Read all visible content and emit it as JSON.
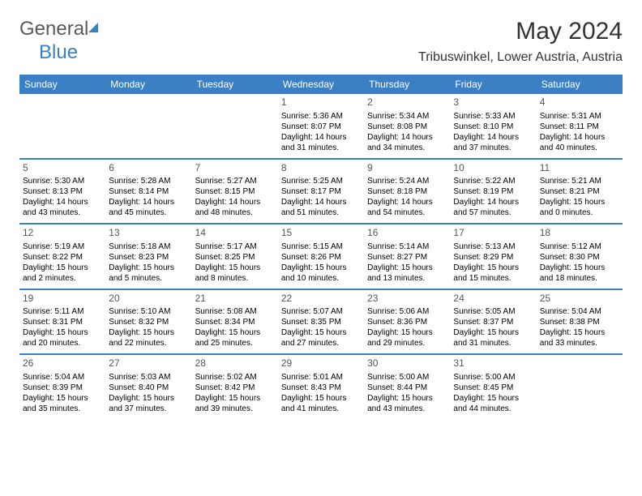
{
  "logo": {
    "part1": "General",
    "part2": "Blue"
  },
  "title": "May 2024",
  "location": "Tribuswinkel, Lower Austria, Austria",
  "colors": {
    "accent": "#3b7fc4",
    "text": "#000000",
    "header_text": "#ffffff",
    "bg": "#ffffff"
  },
  "weekdays": [
    "Sunday",
    "Monday",
    "Tuesday",
    "Wednesday",
    "Thursday",
    "Friday",
    "Saturday"
  ],
  "weeks": [
    [
      {
        "n": "",
        "sr": "",
        "ss": "",
        "dl": ""
      },
      {
        "n": "",
        "sr": "",
        "ss": "",
        "dl": ""
      },
      {
        "n": "",
        "sr": "",
        "ss": "",
        "dl": ""
      },
      {
        "n": "1",
        "sr": "Sunrise: 5:36 AM",
        "ss": "Sunset: 8:07 PM",
        "dl": "Daylight: 14 hours and 31 minutes."
      },
      {
        "n": "2",
        "sr": "Sunrise: 5:34 AM",
        "ss": "Sunset: 8:08 PM",
        "dl": "Daylight: 14 hours and 34 minutes."
      },
      {
        "n": "3",
        "sr": "Sunrise: 5:33 AM",
        "ss": "Sunset: 8:10 PM",
        "dl": "Daylight: 14 hours and 37 minutes."
      },
      {
        "n": "4",
        "sr": "Sunrise: 5:31 AM",
        "ss": "Sunset: 8:11 PM",
        "dl": "Daylight: 14 hours and 40 minutes."
      }
    ],
    [
      {
        "n": "5",
        "sr": "Sunrise: 5:30 AM",
        "ss": "Sunset: 8:13 PM",
        "dl": "Daylight: 14 hours and 43 minutes."
      },
      {
        "n": "6",
        "sr": "Sunrise: 5:28 AM",
        "ss": "Sunset: 8:14 PM",
        "dl": "Daylight: 14 hours and 45 minutes."
      },
      {
        "n": "7",
        "sr": "Sunrise: 5:27 AM",
        "ss": "Sunset: 8:15 PM",
        "dl": "Daylight: 14 hours and 48 minutes."
      },
      {
        "n": "8",
        "sr": "Sunrise: 5:25 AM",
        "ss": "Sunset: 8:17 PM",
        "dl": "Daylight: 14 hours and 51 minutes."
      },
      {
        "n": "9",
        "sr": "Sunrise: 5:24 AM",
        "ss": "Sunset: 8:18 PM",
        "dl": "Daylight: 14 hours and 54 minutes."
      },
      {
        "n": "10",
        "sr": "Sunrise: 5:22 AM",
        "ss": "Sunset: 8:19 PM",
        "dl": "Daylight: 14 hours and 57 minutes."
      },
      {
        "n": "11",
        "sr": "Sunrise: 5:21 AM",
        "ss": "Sunset: 8:21 PM",
        "dl": "Daylight: 15 hours and 0 minutes."
      }
    ],
    [
      {
        "n": "12",
        "sr": "Sunrise: 5:19 AM",
        "ss": "Sunset: 8:22 PM",
        "dl": "Daylight: 15 hours and 2 minutes."
      },
      {
        "n": "13",
        "sr": "Sunrise: 5:18 AM",
        "ss": "Sunset: 8:23 PM",
        "dl": "Daylight: 15 hours and 5 minutes."
      },
      {
        "n": "14",
        "sr": "Sunrise: 5:17 AM",
        "ss": "Sunset: 8:25 PM",
        "dl": "Daylight: 15 hours and 8 minutes."
      },
      {
        "n": "15",
        "sr": "Sunrise: 5:15 AM",
        "ss": "Sunset: 8:26 PM",
        "dl": "Daylight: 15 hours and 10 minutes."
      },
      {
        "n": "16",
        "sr": "Sunrise: 5:14 AM",
        "ss": "Sunset: 8:27 PM",
        "dl": "Daylight: 15 hours and 13 minutes."
      },
      {
        "n": "17",
        "sr": "Sunrise: 5:13 AM",
        "ss": "Sunset: 8:29 PM",
        "dl": "Daylight: 15 hours and 15 minutes."
      },
      {
        "n": "18",
        "sr": "Sunrise: 5:12 AM",
        "ss": "Sunset: 8:30 PM",
        "dl": "Daylight: 15 hours and 18 minutes."
      }
    ],
    [
      {
        "n": "19",
        "sr": "Sunrise: 5:11 AM",
        "ss": "Sunset: 8:31 PM",
        "dl": "Daylight: 15 hours and 20 minutes."
      },
      {
        "n": "20",
        "sr": "Sunrise: 5:10 AM",
        "ss": "Sunset: 8:32 PM",
        "dl": "Daylight: 15 hours and 22 minutes."
      },
      {
        "n": "21",
        "sr": "Sunrise: 5:08 AM",
        "ss": "Sunset: 8:34 PM",
        "dl": "Daylight: 15 hours and 25 minutes."
      },
      {
        "n": "22",
        "sr": "Sunrise: 5:07 AM",
        "ss": "Sunset: 8:35 PM",
        "dl": "Daylight: 15 hours and 27 minutes."
      },
      {
        "n": "23",
        "sr": "Sunrise: 5:06 AM",
        "ss": "Sunset: 8:36 PM",
        "dl": "Daylight: 15 hours and 29 minutes."
      },
      {
        "n": "24",
        "sr": "Sunrise: 5:05 AM",
        "ss": "Sunset: 8:37 PM",
        "dl": "Daylight: 15 hours and 31 minutes."
      },
      {
        "n": "25",
        "sr": "Sunrise: 5:04 AM",
        "ss": "Sunset: 8:38 PM",
        "dl": "Daylight: 15 hours and 33 minutes."
      }
    ],
    [
      {
        "n": "26",
        "sr": "Sunrise: 5:04 AM",
        "ss": "Sunset: 8:39 PM",
        "dl": "Daylight: 15 hours and 35 minutes."
      },
      {
        "n": "27",
        "sr": "Sunrise: 5:03 AM",
        "ss": "Sunset: 8:40 PM",
        "dl": "Daylight: 15 hours and 37 minutes."
      },
      {
        "n": "28",
        "sr": "Sunrise: 5:02 AM",
        "ss": "Sunset: 8:42 PM",
        "dl": "Daylight: 15 hours and 39 minutes."
      },
      {
        "n": "29",
        "sr": "Sunrise: 5:01 AM",
        "ss": "Sunset: 8:43 PM",
        "dl": "Daylight: 15 hours and 41 minutes."
      },
      {
        "n": "30",
        "sr": "Sunrise: 5:00 AM",
        "ss": "Sunset: 8:44 PM",
        "dl": "Daylight: 15 hours and 43 minutes."
      },
      {
        "n": "31",
        "sr": "Sunrise: 5:00 AM",
        "ss": "Sunset: 8:45 PM",
        "dl": "Daylight: 15 hours and 44 minutes."
      },
      {
        "n": "",
        "sr": "",
        "ss": "",
        "dl": ""
      }
    ]
  ]
}
